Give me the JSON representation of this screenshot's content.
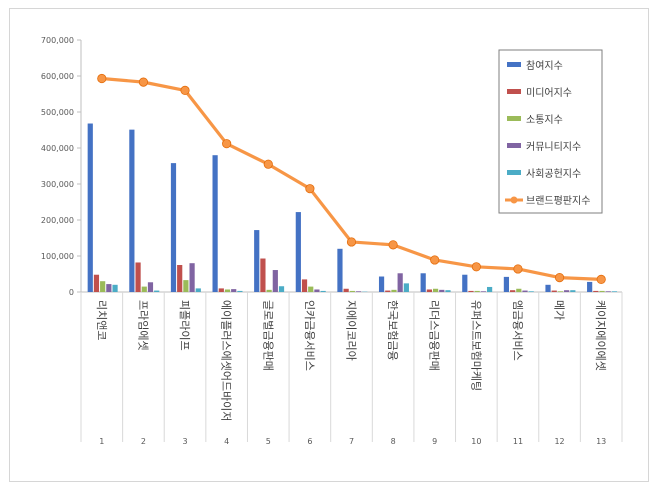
{
  "chart_data": {
    "type": "bar",
    "title": "",
    "xlabel": "",
    "ylabel": "",
    "ylim": [
      0,
      700000
    ],
    "yticks": [
      0,
      100000,
      200000,
      300000,
      400000,
      500000,
      600000,
      700000
    ],
    "ytick_labels": [
      "0",
      "100,000",
      "200,000",
      "300,000",
      "400,000",
      "500,000",
      "600,000",
      "700,000"
    ],
    "grid": false,
    "legend_position": "top-right",
    "categories": [
      "리치앤코",
      "프라임에셋",
      "피플라이프",
      "에이플러스에셋어드바이저",
      "글로벌금융판매",
      "인카금융서비스",
      "지에이코리아",
      "한국보험금융",
      "리더스금융판매",
      "유퍼스트보험마케팅",
      "엠금융서비스",
      "메가",
      "케이지에이에셋"
    ],
    "ranks": [
      "1",
      "2",
      "3",
      "4",
      "5",
      "6",
      "7",
      "8",
      "9",
      "10",
      "11",
      "12",
      "13"
    ],
    "series": [
      {
        "name": "참여지수",
        "kind": "bar",
        "color": "#4472c4",
        "values": [
          468000,
          451000,
          358000,
          380000,
          172000,
          222000,
          120000,
          43000,
          52000,
          48000,
          42000,
          20000,
          28000
        ]
      },
      {
        "name": "미디어지수",
        "kind": "bar",
        "color": "#c0504d",
        "values": [
          48000,
          82000,
          75000,
          10000,
          93000,
          35000,
          9000,
          4000,
          7000,
          3000,
          5000,
          4000,
          3000
        ]
      },
      {
        "name": "소통지수",
        "kind": "bar",
        "color": "#9bbb59",
        "values": [
          30000,
          15000,
          33000,
          7000,
          6000,
          15000,
          3000,
          6000,
          9000,
          3000,
          9000,
          2000,
          3000
        ]
      },
      {
        "name": "커뮤니티지수",
        "kind": "bar",
        "color": "#8064a2",
        "values": [
          22000,
          27000,
          80000,
          8000,
          61000,
          7000,
          2000,
          52000,
          6000,
          2000,
          4000,
          5000,
          2000
        ]
      },
      {
        "name": "사회공헌지수",
        "kind": "bar",
        "color": "#4bacc6",
        "values": [
          20000,
          4000,
          10000,
          3000,
          16000,
          3000,
          1000,
          24000,
          5000,
          14000,
          2000,
          5000,
          2000
        ]
      },
      {
        "name": "브랜드평판지수",
        "kind": "line",
        "color": "#f79646",
        "values": [
          593000,
          583000,
          560000,
          412000,
          355000,
          287000,
          139000,
          131000,
          89000,
          70000,
          64000,
          40000,
          35000
        ]
      }
    ]
  }
}
